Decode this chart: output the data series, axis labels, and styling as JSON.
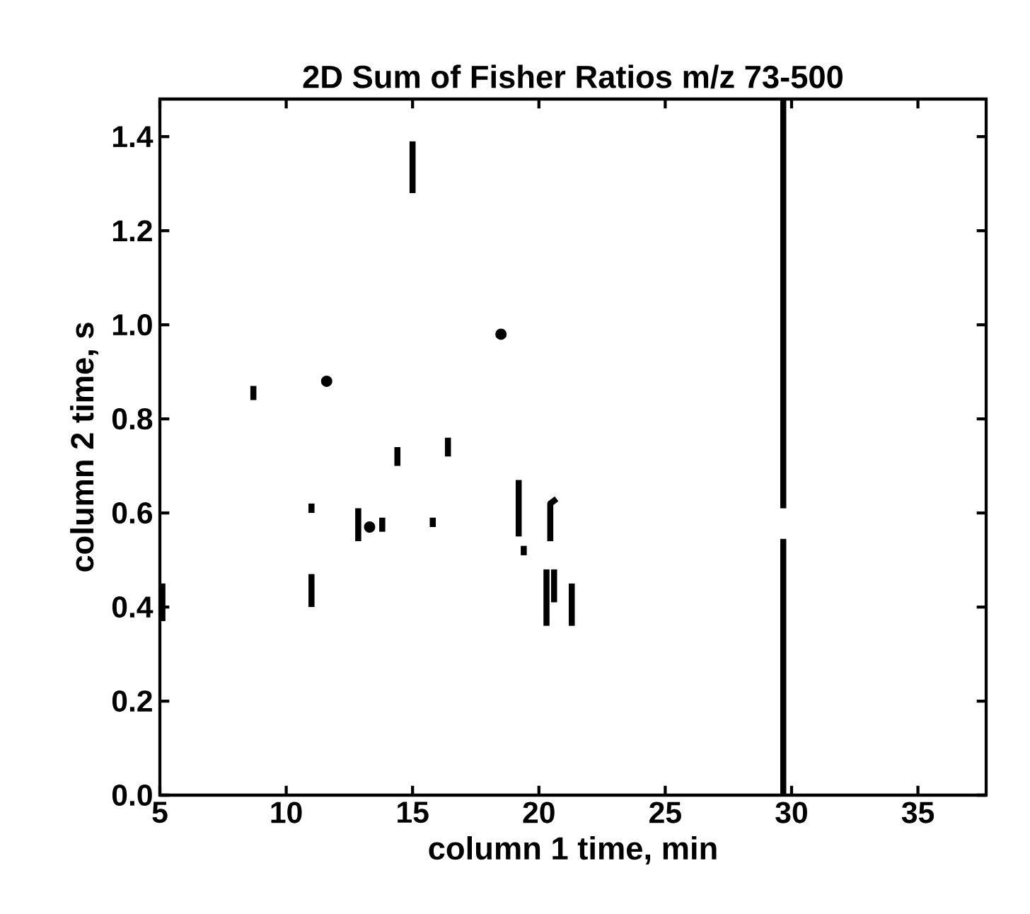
{
  "chart_data": {
    "type": "line",
    "title": "2D Sum of Fisher Ratios m/z 73-500",
    "xlabel": "column 1 time, min",
    "ylabel": "column 2 time, s",
    "xlim": [
      5,
      37.7
    ],
    "ylim": [
      0,
      1.48
    ],
    "xticks": [
      5,
      10,
      15,
      20,
      25,
      30,
      35
    ],
    "yticks": [
      {
        "value": 0,
        "label": "0.0"
      },
      {
        "value": 0.2,
        "label": "0.2"
      },
      {
        "value": 0.4,
        "label": "0.4"
      },
      {
        "value": 0.6,
        "label": "0.6"
      },
      {
        "value": 0.8,
        "label": "0.8"
      },
      {
        "value": 1.0,
        "label": "1.0"
      },
      {
        "value": 1.2,
        "label": "1.2"
      },
      {
        "value": 1.4,
        "label": "1.4"
      }
    ],
    "grid": false,
    "line_style": "solid",
    "series": [
      {
        "color": "#000000",
        "x": [
          5.1,
          5.1
        ],
        "values": [
          0.37,
          0.45
        ]
      },
      {
        "color": "#000000",
        "x": [
          8.7,
          8.7
        ],
        "values": [
          0.84,
          0.87
        ]
      },
      {
        "color": "#000000",
        "type": "scatter",
        "marker": "circle",
        "x": [
          11.6
        ],
        "values": [
          0.88
        ]
      },
      {
        "color": "#000000",
        "x": [
          11.0,
          11.0
        ],
        "values": [
          0.6,
          0.62
        ]
      },
      {
        "color": "#000000",
        "x": [
          11.0,
          11.0
        ],
        "values": [
          0.4,
          0.47
        ]
      },
      {
        "color": "#000000",
        "x": [
          12.85,
          12.85
        ],
        "values": [
          0.54,
          0.61
        ]
      },
      {
        "color": "#000000",
        "type": "scatter",
        "marker": "circle",
        "x": [
          13.3
        ],
        "values": [
          0.57
        ]
      },
      {
        "color": "#000000",
        "x": [
          13.8,
          13.8
        ],
        "values": [
          0.56,
          0.59
        ]
      },
      {
        "color": "#000000",
        "x": [
          14.4,
          14.4
        ],
        "values": [
          0.7,
          0.74
        ]
      },
      {
        "color": "#000000",
        "x": [
          15.0,
          15.0
        ],
        "values": [
          1.28,
          1.39
        ]
      },
      {
        "color": "#000000",
        "x": [
          15.8,
          15.8
        ],
        "values": [
          0.57,
          0.59
        ]
      },
      {
        "color": "#000000",
        "x": [
          16.4,
          16.4
        ],
        "values": [
          0.72,
          0.76
        ]
      },
      {
        "color": "#000000",
        "type": "scatter",
        "marker": "circle",
        "x": [
          18.5
        ],
        "values": [
          0.98
        ]
      },
      {
        "color": "#000000",
        "x": [
          19.2,
          19.2
        ],
        "values": [
          0.55,
          0.67
        ]
      },
      {
        "color": "#000000",
        "x": [
          19.4,
          19.4
        ],
        "values": [
          0.51,
          0.53
        ]
      },
      {
        "color": "#000000",
        "x": [
          20.45,
          20.45,
          20.7
        ],
        "values": [
          0.54,
          0.62,
          0.63
        ]
      },
      {
        "color": "#000000",
        "x": [
          20.3,
          20.3
        ],
        "values": [
          0.36,
          0.48
        ]
      },
      {
        "color": "#000000",
        "x": [
          20.6,
          20.6
        ],
        "values": [
          0.41,
          0.48
        ]
      },
      {
        "color": "#000000",
        "x": [
          21.3,
          21.3
        ],
        "values": [
          0.36,
          0.45
        ]
      },
      {
        "color": "#000000",
        "x": [
          29.67,
          29.67
        ],
        "values": [
          0,
          0.545
        ]
      },
      {
        "color": "#000000",
        "x": [
          29.67,
          29.67
        ],
        "values": [
          0.61,
          1.48
        ]
      }
    ]
  }
}
